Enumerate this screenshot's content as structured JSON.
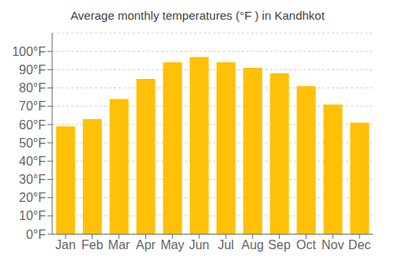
{
  "chart_data": {
    "type": "bar",
    "title": "Average monthly temperatures (°F ) in Kandhkot",
    "categories": [
      "Jan",
      "Feb",
      "Mar",
      "Apr",
      "May",
      "Jun",
      "Jul",
      "Aug",
      "Sep",
      "Oct",
      "Nov",
      "Dec"
    ],
    "values": [
      59,
      63,
      74,
      85,
      94,
      97,
      94,
      91,
      88,
      81,
      71,
      61
    ],
    "color": "#FFC107",
    "ylim": [
      0,
      110
    ],
    "yticks": [
      {
        "value": 0,
        "label": "0°F"
      },
      {
        "value": 10,
        "label": "10°F"
      },
      {
        "value": 20,
        "label": "20°F"
      },
      {
        "value": 30,
        "label": "30°F"
      },
      {
        "value": 40,
        "label": "40°F"
      },
      {
        "value": 50,
        "label": "50°F"
      },
      {
        "value": 60,
        "label": "60°F"
      },
      {
        "value": 70,
        "label": "70°F"
      },
      {
        "value": 80,
        "label": "80°F"
      },
      {
        "value": 90,
        "label": "90°F"
      },
      {
        "value": 100,
        "label": "100°F"
      }
    ],
    "grid": true
  }
}
